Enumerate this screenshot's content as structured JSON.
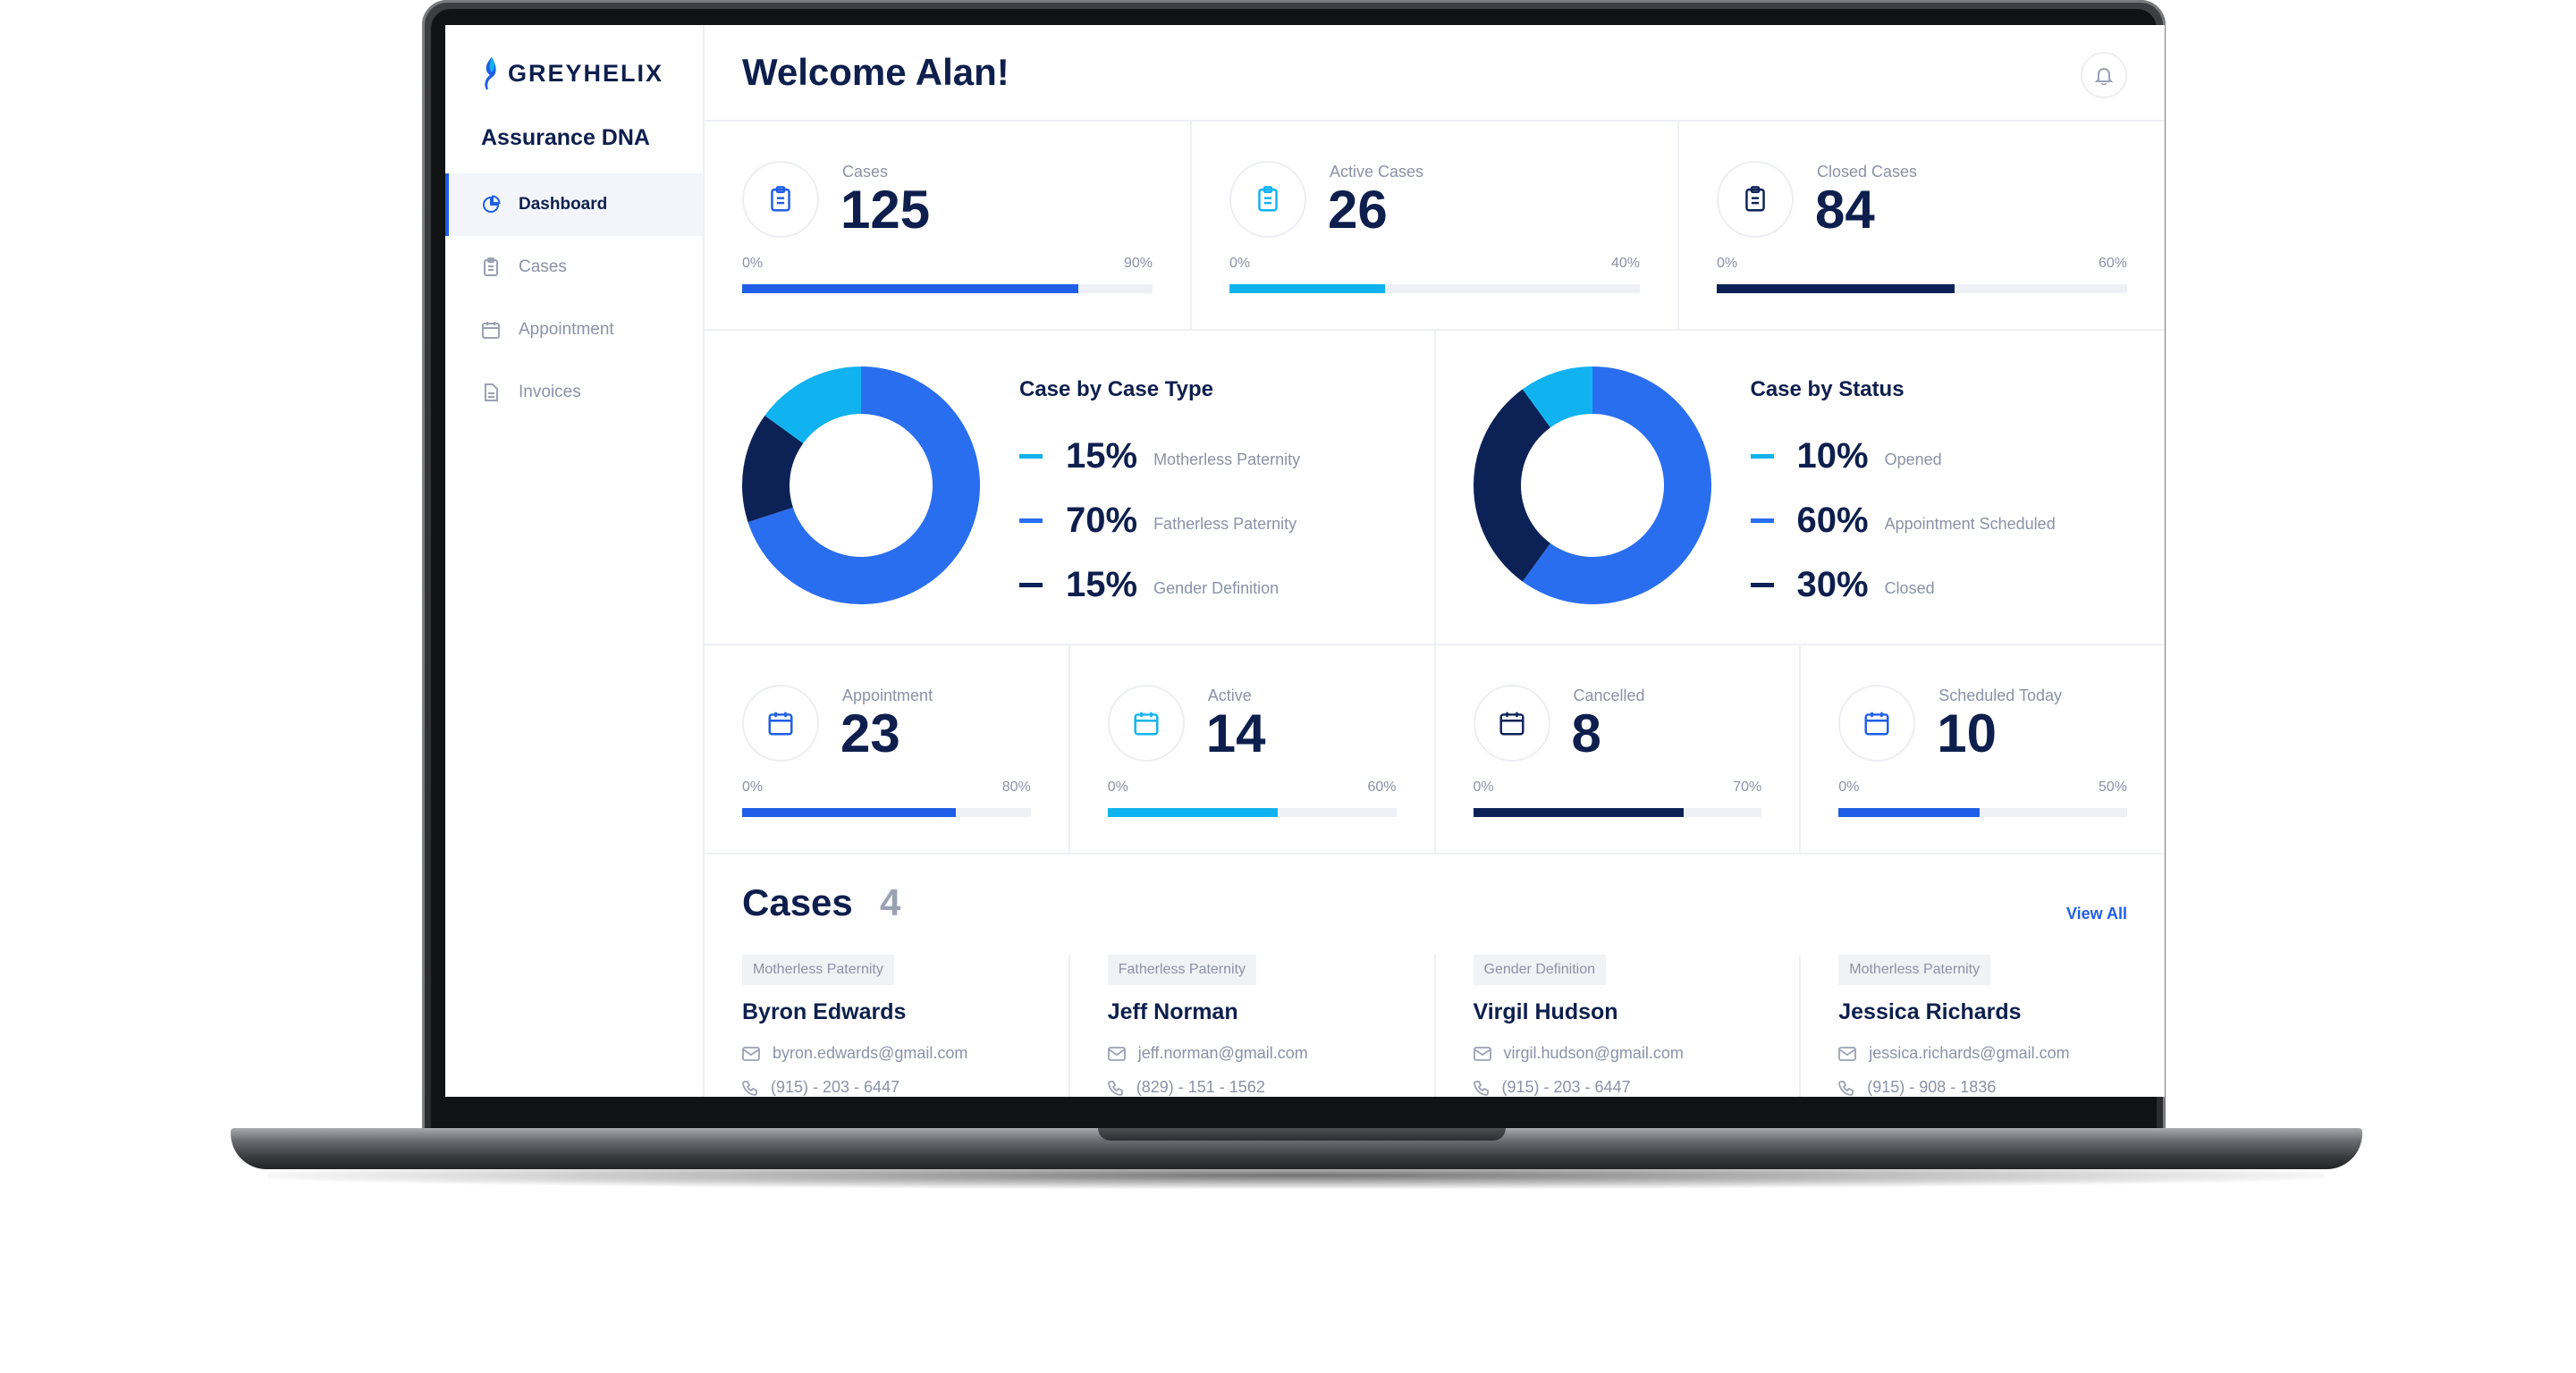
{
  "brand": {
    "name": "GREYHELIX",
    "org": "Assurance DNA"
  },
  "nav": [
    {
      "label": "Dashboard",
      "icon": "pie-chart-icon",
      "active": true
    },
    {
      "label": "Cases",
      "icon": "clipboard-icon",
      "active": false
    },
    {
      "label": "Appointment",
      "icon": "calendar-icon",
      "active": false
    },
    {
      "label": "Invoices",
      "icon": "document-icon",
      "active": false
    }
  ],
  "header": {
    "welcome": "Welcome Alan!",
    "icon": "bell-icon"
  },
  "case_stats": [
    {
      "label": "Cases",
      "value": "125",
      "min": "0%",
      "max": "90%",
      "progress": 0.82,
      "color": "#1f5ee6",
      "icon": "clipboard-icon",
      "icon_color": "#1f5ee6"
    },
    {
      "label": "Active Cases",
      "value": "26",
      "min": "0%",
      "max": "40%",
      "progress": 0.38,
      "color": "#10b3f0",
      "icon": "clipboard-icon",
      "icon_color": "#10b3f0"
    },
    {
      "label": "Closed Cases",
      "value": "84",
      "min": "0%",
      "max": "60%",
      "progress": 0.58,
      "color": "#0c2257",
      "icon": "clipboard-icon",
      "icon_color": "#0c2257"
    }
  ],
  "donuts": [
    {
      "title": "Case by Case Type",
      "items": [
        {
          "pct": "15%",
          "value": 15,
          "label": "Motherless Paternity",
          "color": "#10b3f0"
        },
        {
          "pct": "70%",
          "value": 70,
          "label": "Fatherless Paternity",
          "color": "#2a6ef0"
        },
        {
          "pct": "15%",
          "value": 15,
          "label": "Gender Definition",
          "color": "#0c2257"
        }
      ]
    },
    {
      "title": "Case by Status",
      "items": [
        {
          "pct": "10%",
          "value": 10,
          "label": "Opened",
          "color": "#10b3f0"
        },
        {
          "pct": "60%",
          "value": 60,
          "label": "Appointment Scheduled",
          "color": "#2a6ef0"
        },
        {
          "pct": "30%",
          "value": 30,
          "label": "Closed",
          "color": "#0c2257"
        }
      ]
    }
  ],
  "appointment_stats": [
    {
      "label": "Appointment",
      "value": "23",
      "min": "0%",
      "max": "80%",
      "progress": 0.74,
      "color": "#1f5ee6",
      "icon": "calendar-icon",
      "icon_color": "#1f5ee6"
    },
    {
      "label": "Active",
      "value": "14",
      "min": "0%",
      "max": "60%",
      "progress": 0.59,
      "color": "#10b3f0",
      "icon": "calendar-icon",
      "icon_color": "#10b3f0"
    },
    {
      "label": "Cancelled",
      "value": "8",
      "min": "0%",
      "max": "70%",
      "progress": 0.73,
      "color": "#0c2257",
      "icon": "calendar-icon",
      "icon_color": "#0c2257"
    },
    {
      "label": "Scheduled Today",
      "value": "10",
      "min": "0%",
      "max": "50%",
      "progress": 0.49,
      "color": "#1f5ee6",
      "icon": "calendar-icon",
      "icon_color": "#1f5ee6"
    }
  ],
  "cases": {
    "title": "Cases",
    "count": "4",
    "view_all": "View All",
    "items": [
      {
        "tag": "Motherless Paternity",
        "name": "Byron Edwards",
        "email": "byron.edwards@gmail.com",
        "phone": "(915) - 203 - 6447"
      },
      {
        "tag": "Fatherless Paternity",
        "name": "Jeff Norman",
        "email": "jeff.norman@gmail.com",
        "phone": "(829) - 151 - 1562"
      },
      {
        "tag": "Gender Definition",
        "name": "Virgil Hudson",
        "email": "virgil.hudson@gmail.com",
        "phone": "(915) - 203 - 6447"
      },
      {
        "tag": "Motherless Paternity",
        "name": "Jessica Richards",
        "email": "jessica.richards@gmail.com",
        "phone": "(915) - 908 - 1836"
      }
    ]
  }
}
